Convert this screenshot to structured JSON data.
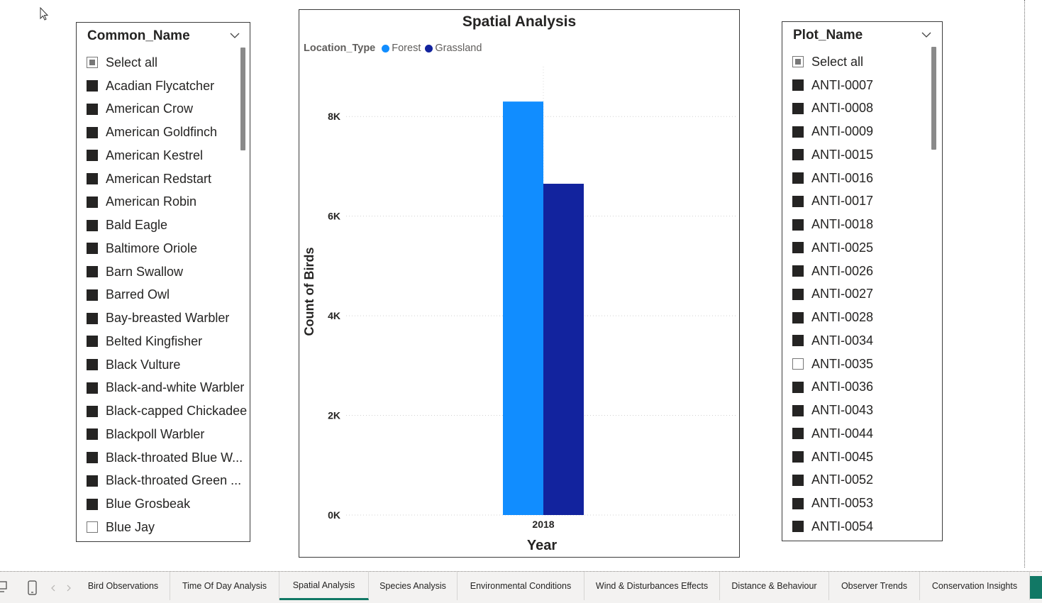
{
  "common_name_slicer": {
    "title": "Common_Name",
    "items": [
      {
        "label": "Select all",
        "state": "partial"
      },
      {
        "label": "Acadian Flycatcher",
        "state": "checked"
      },
      {
        "label": "American Crow",
        "state": "checked"
      },
      {
        "label": "American Goldfinch",
        "state": "checked"
      },
      {
        "label": "American Kestrel",
        "state": "checked"
      },
      {
        "label": "American Redstart",
        "state": "checked"
      },
      {
        "label": "American Robin",
        "state": "checked"
      },
      {
        "label": "Bald Eagle",
        "state": "checked"
      },
      {
        "label": "Baltimore Oriole",
        "state": "checked"
      },
      {
        "label": "Barn Swallow",
        "state": "checked"
      },
      {
        "label": "Barred Owl",
        "state": "checked"
      },
      {
        "label": "Bay-breasted Warbler",
        "state": "checked"
      },
      {
        "label": "Belted Kingfisher",
        "state": "checked"
      },
      {
        "label": "Black Vulture",
        "state": "checked"
      },
      {
        "label": "Black-and-white Warbler",
        "state": "checked"
      },
      {
        "label": "Black-capped Chickadee",
        "state": "checked"
      },
      {
        "label": "Blackpoll Warbler",
        "state": "checked"
      },
      {
        "label": "Black-throated Blue W...",
        "state": "checked"
      },
      {
        "label": "Black-throated Green ...",
        "state": "checked"
      },
      {
        "label": "Blue Grosbeak",
        "state": "checked"
      },
      {
        "label": "Blue Jay",
        "state": "unchecked"
      }
    ]
  },
  "plot_name_slicer": {
    "title": "Plot_Name",
    "items": [
      {
        "label": "Select all",
        "state": "partial"
      },
      {
        "label": "ANTI-0007",
        "state": "checked"
      },
      {
        "label": "ANTI-0008",
        "state": "checked"
      },
      {
        "label": "ANTI-0009",
        "state": "checked"
      },
      {
        "label": "ANTI-0015",
        "state": "checked"
      },
      {
        "label": "ANTI-0016",
        "state": "checked"
      },
      {
        "label": "ANTI-0017",
        "state": "checked"
      },
      {
        "label": "ANTI-0018",
        "state": "checked"
      },
      {
        "label": "ANTI-0025",
        "state": "checked"
      },
      {
        "label": "ANTI-0026",
        "state": "checked"
      },
      {
        "label": "ANTI-0027",
        "state": "checked"
      },
      {
        "label": "ANTI-0028",
        "state": "checked"
      },
      {
        "label": "ANTI-0034",
        "state": "checked"
      },
      {
        "label": "ANTI-0035",
        "state": "unchecked"
      },
      {
        "label": "ANTI-0036",
        "state": "checked"
      },
      {
        "label": "ANTI-0043",
        "state": "checked"
      },
      {
        "label": "ANTI-0044",
        "state": "checked"
      },
      {
        "label": "ANTI-0045",
        "state": "checked"
      },
      {
        "label": "ANTI-0052",
        "state": "checked"
      },
      {
        "label": "ANTI-0053",
        "state": "checked"
      },
      {
        "label": "ANTI-0054",
        "state": "checked"
      }
    ]
  },
  "chart_data": {
    "type": "bar",
    "title": "Spatial Analysis",
    "legend_title": "Location_Type",
    "legend_position": "top-left",
    "categories": [
      "2018"
    ],
    "series": [
      {
        "name": "Forest",
        "values": [
          8300
        ],
        "color": "#118DFF"
      },
      {
        "name": "Grassland",
        "values": [
          6650
        ],
        "color": "#12239E"
      }
    ],
    "xlabel": "Year",
    "ylabel": "Count of Birds",
    "ylim": [
      0,
      9000
    ],
    "yticks": [
      {
        "value": 0,
        "label": "0K"
      },
      {
        "value": 2000,
        "label": "2K"
      },
      {
        "value": 4000,
        "label": "4K"
      },
      {
        "value": 6000,
        "label": "6K"
      },
      {
        "value": 8000,
        "label": "8K"
      }
    ],
    "grid": true
  },
  "tabs": [
    {
      "label": "Bird Observations",
      "active": false
    },
    {
      "label": "Time Of Day Analysis",
      "active": false
    },
    {
      "label": "Spatial Analysis",
      "active": true
    },
    {
      "label": "Species Analysis",
      "active": false
    },
    {
      "label": "Environmental Conditions",
      "active": false
    },
    {
      "label": "Wind & Disturbances Effects",
      "active": false
    },
    {
      "label": "Distance & Behaviour",
      "active": false
    },
    {
      "label": "Observer Trends",
      "active": false
    },
    {
      "label": "Conservation Insights",
      "active": false
    }
  ],
  "icons": {
    "desktop_view": "desktop-icon",
    "mobile_view": "mobile-icon",
    "prev_page": "chevron-left-icon",
    "next_page": "chevron-right-icon",
    "cursor": "cursor-icon"
  }
}
